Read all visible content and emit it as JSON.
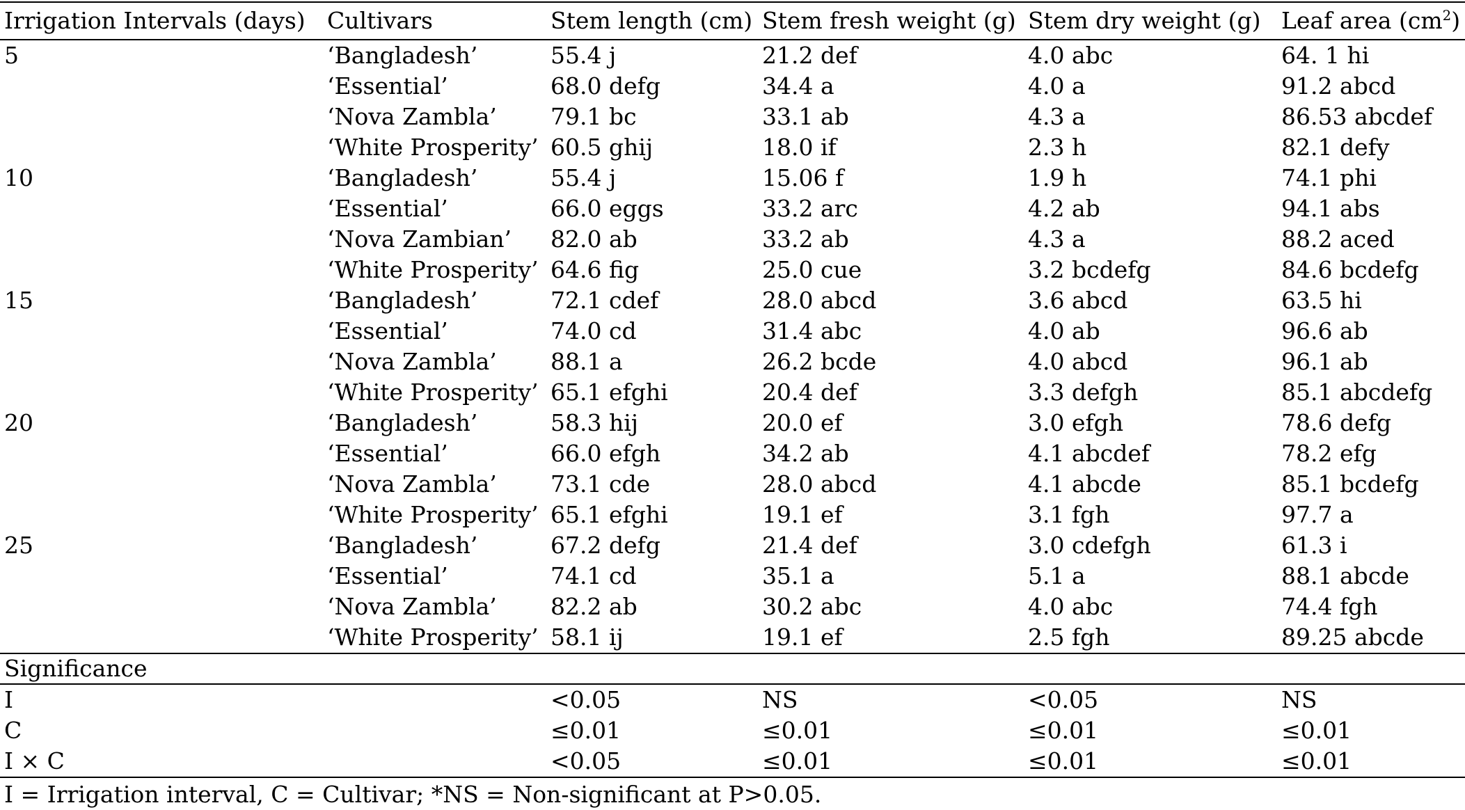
{
  "table": {
    "headers": {
      "interval": "Irrigation Intervals (days)",
      "cultivar": "Cultivars",
      "stem_length": "Stem length (cm)",
      "fresh_weight": "Stem fresh weight (g)",
      "dry_weight": "Stem dry weight (g)",
      "leaf_area_base": "Leaf area (cm",
      "leaf_area_sup": "2",
      "leaf_area_close": ")"
    },
    "rows": [
      {
        "interval": "5",
        "cultivar": "‘Bangladesh’",
        "stem_length": "55.4 j",
        "fresh_weight": "21.2 def",
        "dry_weight": "4.0 abc",
        "leaf_area": "64. 1 hi"
      },
      {
        "interval": "",
        "cultivar": "‘Essential’",
        "stem_length": "68.0 defg",
        "fresh_weight": "34.4 a",
        "dry_weight": "4.0 a",
        "leaf_area": "91.2 abcd"
      },
      {
        "interval": "",
        "cultivar": "‘Nova Zambla’",
        "stem_length": "79.1 bc",
        "fresh_weight": "33.1 ab",
        "dry_weight": "4.3 a",
        "leaf_area": "86.53 abcdef"
      },
      {
        "interval": "",
        "cultivar": "‘White Prosperity’",
        "stem_length": "60.5 ghij",
        "fresh_weight": "18.0 if",
        "dry_weight": "2.3 h",
        "leaf_area": "82.1 defy"
      },
      {
        "interval": "10",
        "cultivar": "‘Bangladesh’",
        "stem_length": "55.4 j",
        "fresh_weight": "15.06 f",
        "dry_weight": "1.9 h",
        "leaf_area": "74.1 phi"
      },
      {
        "interval": "",
        "cultivar": "‘Essential’",
        "stem_length": "66.0 eggs",
        "fresh_weight": "33.2 arc",
        "dry_weight": "4.2 ab",
        "leaf_area": "94.1 abs"
      },
      {
        "interval": "",
        "cultivar": "‘Nova Zambian’",
        "stem_length": "82.0 ab",
        "fresh_weight": "33.2 ab",
        "dry_weight": "4.3 a",
        "leaf_area": "88.2 aced"
      },
      {
        "interval": "",
        "cultivar": "‘White Prosperity’",
        "stem_length": "64.6 fig",
        "fresh_weight": "25.0 cue",
        "dry_weight": "3.2 bcdefg",
        "leaf_area": "84.6 bcdefg"
      },
      {
        "interval": "15",
        "cultivar": "‘Bangladesh’",
        "stem_length": "72.1 cdef",
        "fresh_weight": "28.0 abcd",
        "dry_weight": "3.6 abcd",
        "leaf_area": "63.5 hi"
      },
      {
        "interval": "",
        "cultivar": "‘Essential’",
        "stem_length": "74.0 cd",
        "fresh_weight": "31.4 abc",
        "dry_weight": "4.0 ab",
        "leaf_area": "96.6 ab"
      },
      {
        "interval": "",
        "cultivar": "‘Nova Zambla’",
        "stem_length": "88.1 a",
        "fresh_weight": "26.2 bcde",
        "dry_weight": "4.0 abcd",
        "leaf_area": "96.1 ab"
      },
      {
        "interval": "",
        "cultivar": "‘White Prosperity’",
        "stem_length": "65.1 efghi",
        "fresh_weight": "20.4 def",
        "dry_weight": "3.3 defgh",
        "leaf_area": "85.1 abcdefg"
      },
      {
        "interval": "20",
        "cultivar": "‘Bangladesh’",
        "stem_length": "58.3 hij",
        "fresh_weight": "20.0 ef",
        "dry_weight": "3.0 efgh",
        "leaf_area": "78.6 defg"
      },
      {
        "interval": "",
        "cultivar": "‘Essential’",
        "stem_length": "66.0 efgh",
        "fresh_weight": "34.2 ab",
        "dry_weight": "4.1 abcdef",
        "leaf_area": "78.2 efg"
      },
      {
        "interval": "",
        "cultivar": "‘Nova Zambla’",
        "stem_length": "73.1 cde",
        "fresh_weight": "28.0 abcd",
        "dry_weight": "4.1 abcde",
        "leaf_area": "85.1 bcdefg"
      },
      {
        "interval": "",
        "cultivar": "‘White Prosperity’",
        "stem_length": "65.1 efghi",
        "fresh_weight": "19.1 ef",
        "dry_weight": "3.1 fgh",
        "leaf_area": "97.7 a"
      },
      {
        "interval": "25",
        "cultivar": "‘Bangladesh’",
        "stem_length": "67.2 defg",
        "fresh_weight": "21.4 def",
        "dry_weight": "3.0 cdefgh",
        "leaf_area": "61.3 i"
      },
      {
        "interval": "",
        "cultivar": "‘Essential’",
        "stem_length": "74.1 cd",
        "fresh_weight": "35.1 a",
        "dry_weight": "5.1 a",
        "leaf_area": "88.1 abcde"
      },
      {
        "interval": "",
        "cultivar": "‘Nova Zambla’",
        "stem_length": "82.2 ab",
        "fresh_weight": "30.2 abc",
        "dry_weight": "4.0 abc",
        "leaf_area": "74.4 fgh"
      },
      {
        "interval": "",
        "cultivar": "‘White Prosperity’",
        "stem_length": "58.1 ij",
        "fresh_weight": "19.1 ef",
        "dry_weight": "2.5 fgh",
        "leaf_area": "89.25 abcde"
      }
    ],
    "significance": {
      "label": "Significance",
      "rows": [
        {
          "factor": "I",
          "stem_length": "<0.05",
          "fresh_weight": "NS",
          "dry_weight": "<0.05",
          "leaf_area": "NS"
        },
        {
          "factor": "C",
          "stem_length": "≤0.01",
          "fresh_weight": "≤0.01",
          "dry_weight": "≤0.01",
          "leaf_area": "≤0.01"
        },
        {
          "factor": "I × C",
          "stem_length": "<0.05",
          "fresh_weight": "≤0.01",
          "dry_weight": "≤0.01",
          "leaf_area": "≤0.01"
        }
      ]
    },
    "footnote": "I = Irrigation interval, C = Cultivar; *NS = Non-significant at P>0.05."
  }
}
